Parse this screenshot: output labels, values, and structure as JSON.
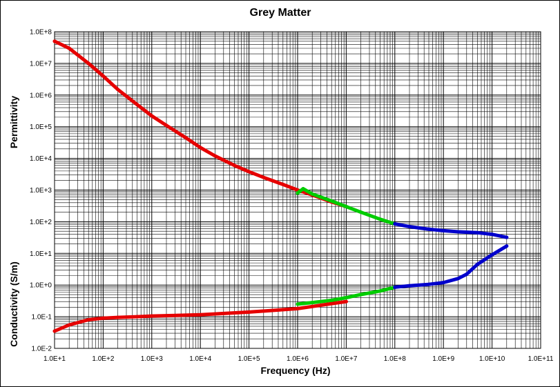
{
  "chart_data": {
    "type": "scatter",
    "title": "Grey Matter",
    "xlabel": "Frequency (Hz)",
    "ylabel_top": "Permittivity",
    "ylabel_bottom": "Conductivity (S/m)",
    "x_scale": "log",
    "y_scale": "log",
    "xlim": [
      10,
      100000000000
    ],
    "ylim": [
      0.01,
      100000000
    ],
    "grid": true,
    "x_ticks": [
      "1.0E+1",
      "1.0E+2",
      "1.0E+3",
      "1.0E+4",
      "1.0E+5",
      "1.0E+6",
      "1.0E+7",
      "1.0E+8",
      "1.0E+9",
      "1.0E+10",
      "1.0E+11"
    ],
    "y_ticks": [
      "1.0E-2",
      "1.0E-1",
      "1.0E+0",
      "1.0E+1",
      "1.0E+2",
      "1.0E+3",
      "1.0E+4",
      "1.0E+5",
      "1.0E+6",
      "1.0E+7",
      "1.0E+8"
    ],
    "series": [
      {
        "color": "#e60000",
        "quantity": "permittivity",
        "x": [
          10,
          20,
          50,
          100,
          200,
          500,
          1000,
          2000,
          5000,
          10000,
          20000,
          50000,
          100000,
          200000,
          500000,
          1000000,
          2000000,
          5000000,
          10000000
        ],
        "y": [
          50000000,
          30000000,
          10000000,
          4000000,
          1500000,
          500000,
          220000,
          110000,
          45000,
          22000,
          12000,
          6000,
          3800,
          2500,
          1500,
          1000,
          700,
          420,
          300
        ]
      },
      {
        "color": "#e60000",
        "quantity": "conductivity",
        "x": [
          10,
          20,
          50,
          100,
          200,
          500,
          1000,
          10000,
          100000,
          1000000,
          2000000,
          5000000,
          10000000
        ],
        "y": [
          0.035,
          0.055,
          0.08,
          0.09,
          0.095,
          0.1,
          0.105,
          0.115,
          0.14,
          0.18,
          0.21,
          0.26,
          0.3
        ]
      },
      {
        "color": "#00cc00",
        "quantity": "permittivity",
        "x": [
          1000000,
          1300000,
          2000000,
          5000000,
          10000000,
          20000000,
          50000000,
          100000000
        ],
        "y": [
          800,
          1100,
          750,
          450,
          300,
          200,
          120,
          85
        ]
      },
      {
        "color": "#00cc00",
        "quantity": "conductivity",
        "x": [
          1000000,
          2000000,
          5000000,
          10000000,
          20000000,
          50000000,
          100000000
        ],
        "y": [
          0.25,
          0.28,
          0.33,
          0.4,
          0.5,
          0.65,
          0.85
        ]
      },
      {
        "color": "#0000cc",
        "quantity": "permittivity",
        "x": [
          100000000,
          200000000,
          500000000,
          1000000000,
          2000000000,
          5000000000,
          10000000000,
          20000000000
        ],
        "y": [
          85,
          70,
          58,
          52,
          48,
          45,
          40,
          32
        ]
      },
      {
        "color": "#0000cc",
        "quantity": "conductivity",
        "x": [
          100000000,
          200000000,
          500000000,
          1000000000,
          2000000000,
          3000000000,
          5000000000,
          10000000000,
          20000000000
        ],
        "y": [
          0.85,
          0.95,
          1.05,
          1.2,
          1.6,
          2.2,
          4.5,
          9,
          17
        ]
      }
    ]
  }
}
